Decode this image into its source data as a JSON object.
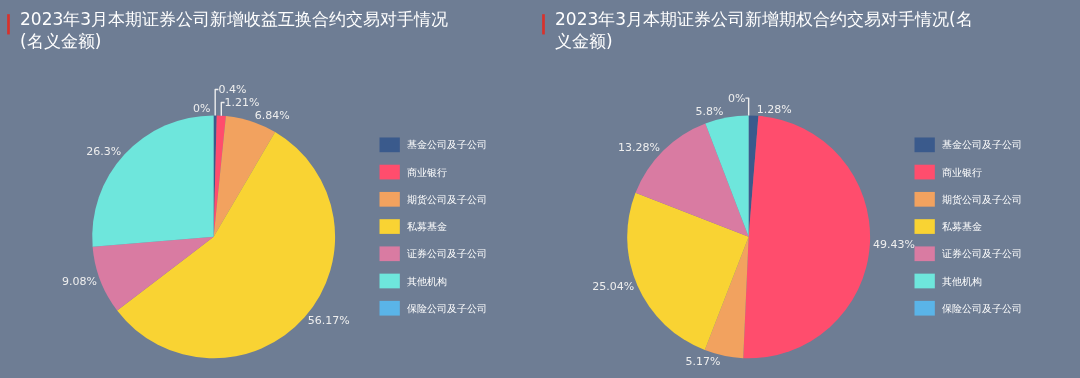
{
  "chart_data": [
    {
      "type": "pie",
      "title": "2023年3月本期证券公司新增收益互换合约交易对手情况(名义金额)",
      "categories": [
        "基金公司及子公司",
        "商业银行",
        "期货公司及子公司",
        "私募基金",
        "证券公司及子公司",
        "其他机构",
        "保险公司及子公司"
      ],
      "values": [
        0.4,
        1.21,
        6.84,
        56.17,
        9.08,
        26.3,
        0
      ],
      "value_labels": [
        "0.4%",
        "1.21%",
        "6.84%",
        "56.17%",
        "9.08%",
        "26.3%",
        "0%"
      ],
      "colors": [
        "#3a5a8c",
        "#ff4d6d",
        "#f2a25f",
        "#f9d333",
        "#d97ba2",
        "#6ee6dc",
        "#5ab4e8"
      ],
      "legend": "right"
    },
    {
      "type": "pie",
      "title": "2023年3月本期证券公司新增期权合约交易对手情况(名义金额)",
      "categories": [
        "基金公司及子公司",
        "商业银行",
        "期货公司及子公司",
        "私募基金",
        "证券公司及子公司",
        "其他机构",
        "保险公司及子公司"
      ],
      "values": [
        1.28,
        49.43,
        5.17,
        25.04,
        13.28,
        5.8,
        0
      ],
      "value_labels": [
        "1.28%",
        "49.43%",
        "5.17%",
        "25.04%",
        "13.28%",
        "5.8%",
        "0%"
      ],
      "colors": [
        "#3a5a8c",
        "#ff4d6d",
        "#f2a25f",
        "#f9d333",
        "#d97ba2",
        "#6ee6dc",
        "#5ab4e8"
      ],
      "legend": "right"
    }
  ]
}
